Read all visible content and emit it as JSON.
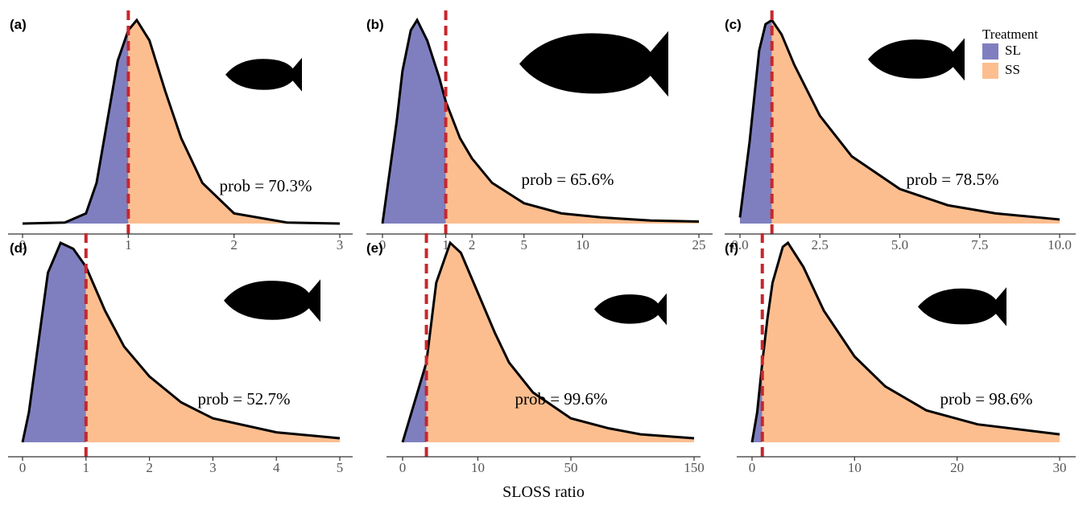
{
  "xlabel": "SLOSS ratio",
  "legend": {
    "title": "Treatment",
    "entries": [
      {
        "name": "SL",
        "color": "#7f7fc0"
      },
      {
        "name": "SS",
        "color": "#fdbe8f"
      }
    ]
  },
  "chart_data": [
    {
      "type": "density",
      "label": "(a)",
      "annotation": "prob = 70.3%",
      "threshold": 1,
      "x": [
        0,
        0.4,
        0.6,
        0.7,
        0.8,
        0.9,
        1.0,
        1.08,
        1.2,
        1.35,
        1.5,
        1.7,
        2.0,
        2.5,
        3.0
      ],
      "values": [
        0,
        0.005,
        0.05,
        0.2,
        0.5,
        0.8,
        0.95,
        1.0,
        0.9,
        0.65,
        0.42,
        0.2,
        0.05,
        0.005,
        0
      ],
      "xlim": [
        0,
        3
      ],
      "ylim": [
        0,
        1
      ],
      "xticks": [
        0,
        1,
        2,
        3
      ]
    },
    {
      "type": "density",
      "label": "(b)",
      "annotation": "prob = 65.6%",
      "threshold": 1,
      "xscale": "sqrt",
      "x": [
        0,
        0.05,
        0.1,
        0.2,
        0.3,
        0.5,
        0.8,
        1,
        1.5,
        2,
        3,
        5,
        8,
        12,
        18,
        25
      ],
      "values": [
        0,
        0.5,
        0.75,
        0.95,
        1.0,
        0.9,
        0.72,
        0.6,
        0.42,
        0.32,
        0.2,
        0.1,
        0.05,
        0.03,
        0.015,
        0.01
      ],
      "xlim": [
        0,
        25
      ],
      "ylim": [
        0,
        1
      ],
      "xticks": [
        0,
        1,
        2,
        5,
        10,
        25
      ]
    },
    {
      "type": "density",
      "label": "(c)",
      "annotation": "prob = 78.5%",
      "threshold": 1,
      "x": [
        0,
        0.3,
        0.6,
        0.8,
        1.0,
        1.3,
        1.7,
        2.5,
        3.5,
        5,
        6.5,
        8,
        10
      ],
      "values": [
        0.03,
        0.4,
        0.85,
        0.98,
        1.0,
        0.93,
        0.78,
        0.53,
        0.33,
        0.17,
        0.09,
        0.05,
        0.02
      ],
      "xlim": [
        0,
        10
      ],
      "ylim": [
        0,
        1
      ],
      "xticks": [
        {
          "value": 0,
          "label": "0.0"
        },
        {
          "value": 2.5,
          "label": "2.5"
        },
        {
          "value": 5,
          "label": "5.0"
        },
        {
          "value": 7.5,
          "label": "7.5"
        },
        {
          "value": 10,
          "label": "10.0"
        }
      ]
    },
    {
      "type": "density",
      "label": "(d)",
      "annotation": "prob = 52.7%",
      "threshold": 1,
      "x": [
        0,
        0.1,
        0.25,
        0.4,
        0.6,
        0.8,
        1.0,
        1.3,
        1.6,
        2,
        2.5,
        3,
        4,
        5
      ],
      "values": [
        0,
        0.15,
        0.5,
        0.85,
        1.0,
        0.97,
        0.88,
        0.66,
        0.48,
        0.33,
        0.2,
        0.12,
        0.05,
        0.02
      ],
      "xlim": [
        0,
        5
      ],
      "ylim": [
        0,
        1
      ],
      "xticks": [
        0,
        1,
        2,
        3,
        4,
        5
      ]
    },
    {
      "type": "density",
      "label": "(e)",
      "annotation": "prob = 99.6%",
      "threshold": 1,
      "xscale": "sqrt",
      "x": [
        0,
        1,
        2,
        4,
        6,
        10,
        15,
        20,
        30,
        50,
        75,
        100,
        150
      ],
      "values": [
        0,
        0.4,
        0.8,
        1.0,
        0.95,
        0.75,
        0.55,
        0.4,
        0.25,
        0.12,
        0.07,
        0.04,
        0.02
      ],
      "xlim": [
        0,
        150
      ],
      "ylim": [
        0,
        1
      ],
      "xticks": [
        0,
        10,
        50,
        150
      ]
    },
    {
      "type": "density",
      "label": "(f)",
      "annotation": "prob = 98.6%",
      "threshold": 1,
      "x": [
        0,
        0.5,
        1,
        1.5,
        2,
        3,
        3.5,
        5,
        7,
        10,
        13,
        17,
        22,
        30
      ],
      "values": [
        0,
        0.15,
        0.4,
        0.62,
        0.8,
        0.98,
        1.0,
        0.88,
        0.66,
        0.43,
        0.28,
        0.16,
        0.09,
        0.04
      ],
      "xlim": [
        0,
        30
      ],
      "ylim": [
        0,
        1
      ],
      "xticks": [
        0,
        10,
        20,
        30
      ]
    }
  ]
}
